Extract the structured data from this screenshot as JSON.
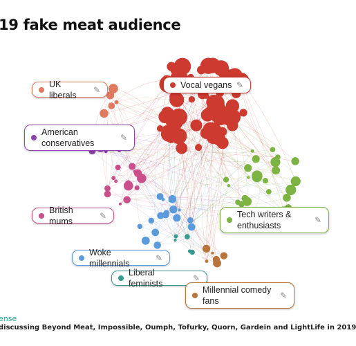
{
  "title": "19 fake meat audience",
  "clusters": [
    {
      "id": "vocal-vegans",
      "label": "Vocal vegans",
      "color": "#cc3a30"
    },
    {
      "id": "uk-liberals",
      "label": "UK liberals",
      "color": "#e07a5f"
    },
    {
      "id": "american-conservatives",
      "label": "American conservatives",
      "color": "#8e44ad"
    },
    {
      "id": "british-mums",
      "label": "British mums",
      "color": "#c94f8a"
    },
    {
      "id": "tech-writers",
      "label": "Tech writers & enthusiasts",
      "color": "#7cb342"
    },
    {
      "id": "woke-millennials",
      "label": "Woke millennials",
      "color": "#5b9bdc"
    },
    {
      "id": "liberal-feminists",
      "label": "Liberal feminists",
      "color": "#3a9a8f"
    },
    {
      "id": "millennial-comedy",
      "label": "Millennial comedy fans",
      "color": "#b8743a"
    }
  ],
  "footer": {
    "label": "ense",
    "description": "discussing Beyond Meat, Impossible, Oumph, Tofurky, Quorn, Gardein and LightLife in 2019"
  },
  "icons": {
    "edit": "pencil-icon"
  }
}
